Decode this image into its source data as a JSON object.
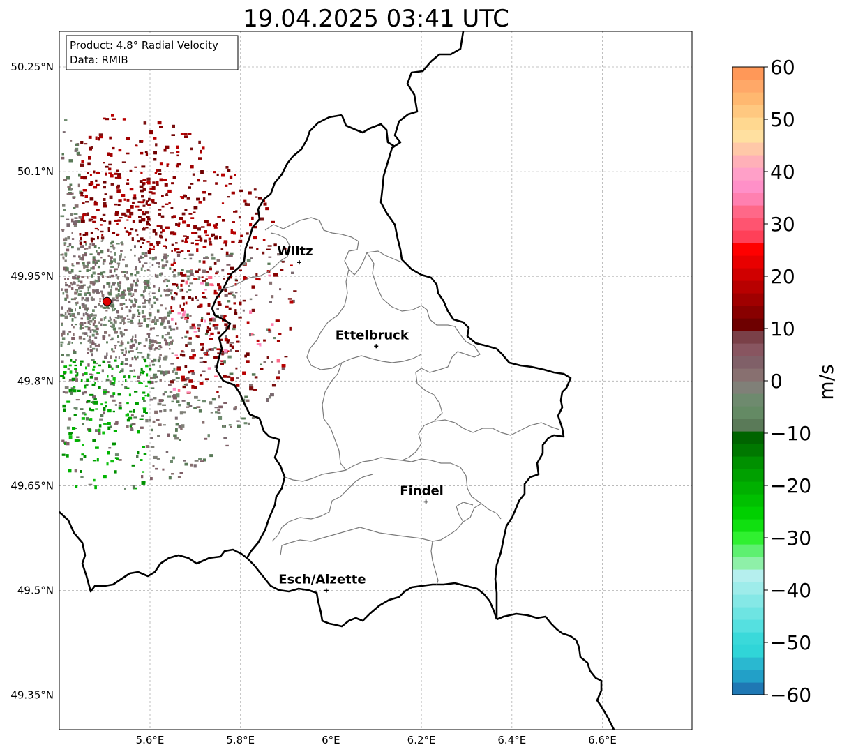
{
  "title": "19.04.2025 03:41 UTC",
  "info_box": {
    "product": "Product: 4.8° Radial Velocity",
    "data": "Data: RMIB"
  },
  "axes": {
    "lon_ticks": [
      "5.6°E",
      "5.8°E",
      "6°E",
      "6.2°E",
      "6.4°E",
      "6.6°E"
    ],
    "lat_ticks": [
      "50.25°N",
      "50.1°N",
      "49.95°N",
      "49.8°N",
      "49.65°N",
      "49.5°N",
      "49.35°N"
    ],
    "lon_range": [
      5.4,
      6.8
    ],
    "lat_range": [
      49.3,
      50.3
    ]
  },
  "cities": [
    {
      "name": "Wiltz",
      "lon": 5.93,
      "lat": 49.97
    },
    {
      "name": "Ettelbruck",
      "lon": 6.1,
      "lat": 49.85
    },
    {
      "name": "Findel",
      "lon": 6.21,
      "lat": 49.627
    },
    {
      "name": "Esch/Alzette",
      "lon": 5.99,
      "lat": 49.5
    }
  ],
  "radar_site": {
    "lon": 5.505,
    "lat": 49.914,
    "color": "#e00000"
  },
  "colorbar": {
    "label": "m/s",
    "ticks": [
      "60",
      "50",
      "40",
      "30",
      "20",
      "10",
      "0",
      "−10",
      "−20",
      "−30",
      "−40",
      "−50",
      "−60"
    ],
    "min": -60,
    "max": 60,
    "colors": [
      "#1f78b4",
      "#22a0c8",
      "#2ab8d0",
      "#30d5d8",
      "#3ad9da",
      "#55e0e0",
      "#6ee4e2",
      "#85e8e6",
      "#9eecea",
      "#b5efee",
      "#8ef0a8",
      "#5ef070",
      "#30f030",
      "#10e010",
      "#00d000",
      "#00c000",
      "#00b000",
      "#00a000",
      "#009000",
      "#007800",
      "#006400",
      "#5a7a58",
      "#648a64",
      "#6e8a6e",
      "#808078",
      "#887070",
      "#806068",
      "#885560",
      "#7a4048",
      "#6e0000",
      "#880000",
      "#a00000",
      "#b80000",
      "#d00000",
      "#e80000",
      "#ff0000",
      "#ff4058",
      "#ff5470",
      "#ff6888",
      "#ff80b0",
      "#ff90c8",
      "#ffa0c8",
      "#ffb0b8",
      "#ffc8a8",
      "#ffe0a0",
      "#ffd890",
      "#ffc880",
      "#ffb870",
      "#ffa868",
      "#ff9858"
    ]
  }
}
